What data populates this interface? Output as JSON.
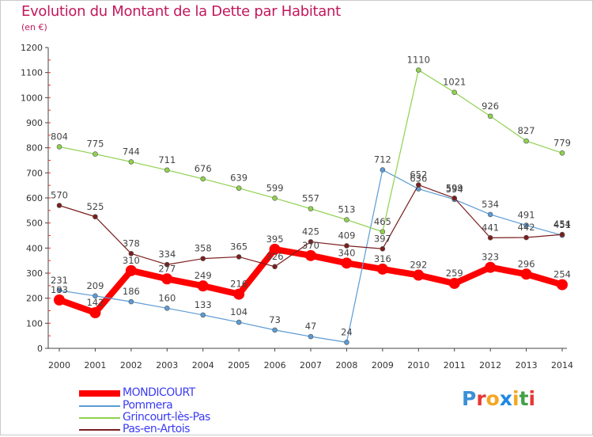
{
  "title": "Evolution du Montant de la Dette par Habitant",
  "subtitle": "(en €)",
  "logo": "Proxiti",
  "chart_data": {
    "type": "line",
    "title": "Evolution du Montant de la Dette par Habitant",
    "subtitle": "(en €)",
    "x": [
      "2000",
      "2001",
      "2002",
      "2003",
      "2004",
      "2005",
      "2006",
      "2007",
      "2008",
      "2009",
      "2010",
      "2011",
      "2012",
      "2013",
      "2014"
    ],
    "y_ticks": [
      "0",
      "100",
      "200",
      "300",
      "400",
      "500",
      "600",
      "700",
      "800",
      "900",
      "1000",
      "1100",
      "1200"
    ],
    "ylim": [
      0,
      1200
    ],
    "grid": false,
    "legend_position": "bottom-left",
    "series": [
      {
        "name": "MONDICOURT",
        "color": "#ff0000",
        "values": [
          193,
          142,
          310,
          277,
          249,
          216,
          395,
          370,
          340,
          316,
          292,
          259,
          323,
          296,
          254
        ]
      },
      {
        "name": "Pommera",
        "color": "#5b9bd5",
        "values": [
          231,
          209,
          186,
          160,
          133,
          104,
          73,
          47,
          24,
          712,
          636,
          594,
          534,
          491,
          451
        ]
      },
      {
        "name": "Grincourt-lès-Pas",
        "color": "#8fd14f",
        "values": [
          804,
          775,
          744,
          711,
          676,
          639,
          599,
          557,
          513,
          465,
          1110,
          1021,
          926,
          827,
          779
        ]
      },
      {
        "name": "Pas-en-Artois",
        "color": "#7b1e1e",
        "values": [
          570,
          525,
          378,
          334,
          358,
          365,
          326,
          425,
          409,
          397,
          652,
          599,
          441,
          442,
          454
        ]
      }
    ]
  }
}
